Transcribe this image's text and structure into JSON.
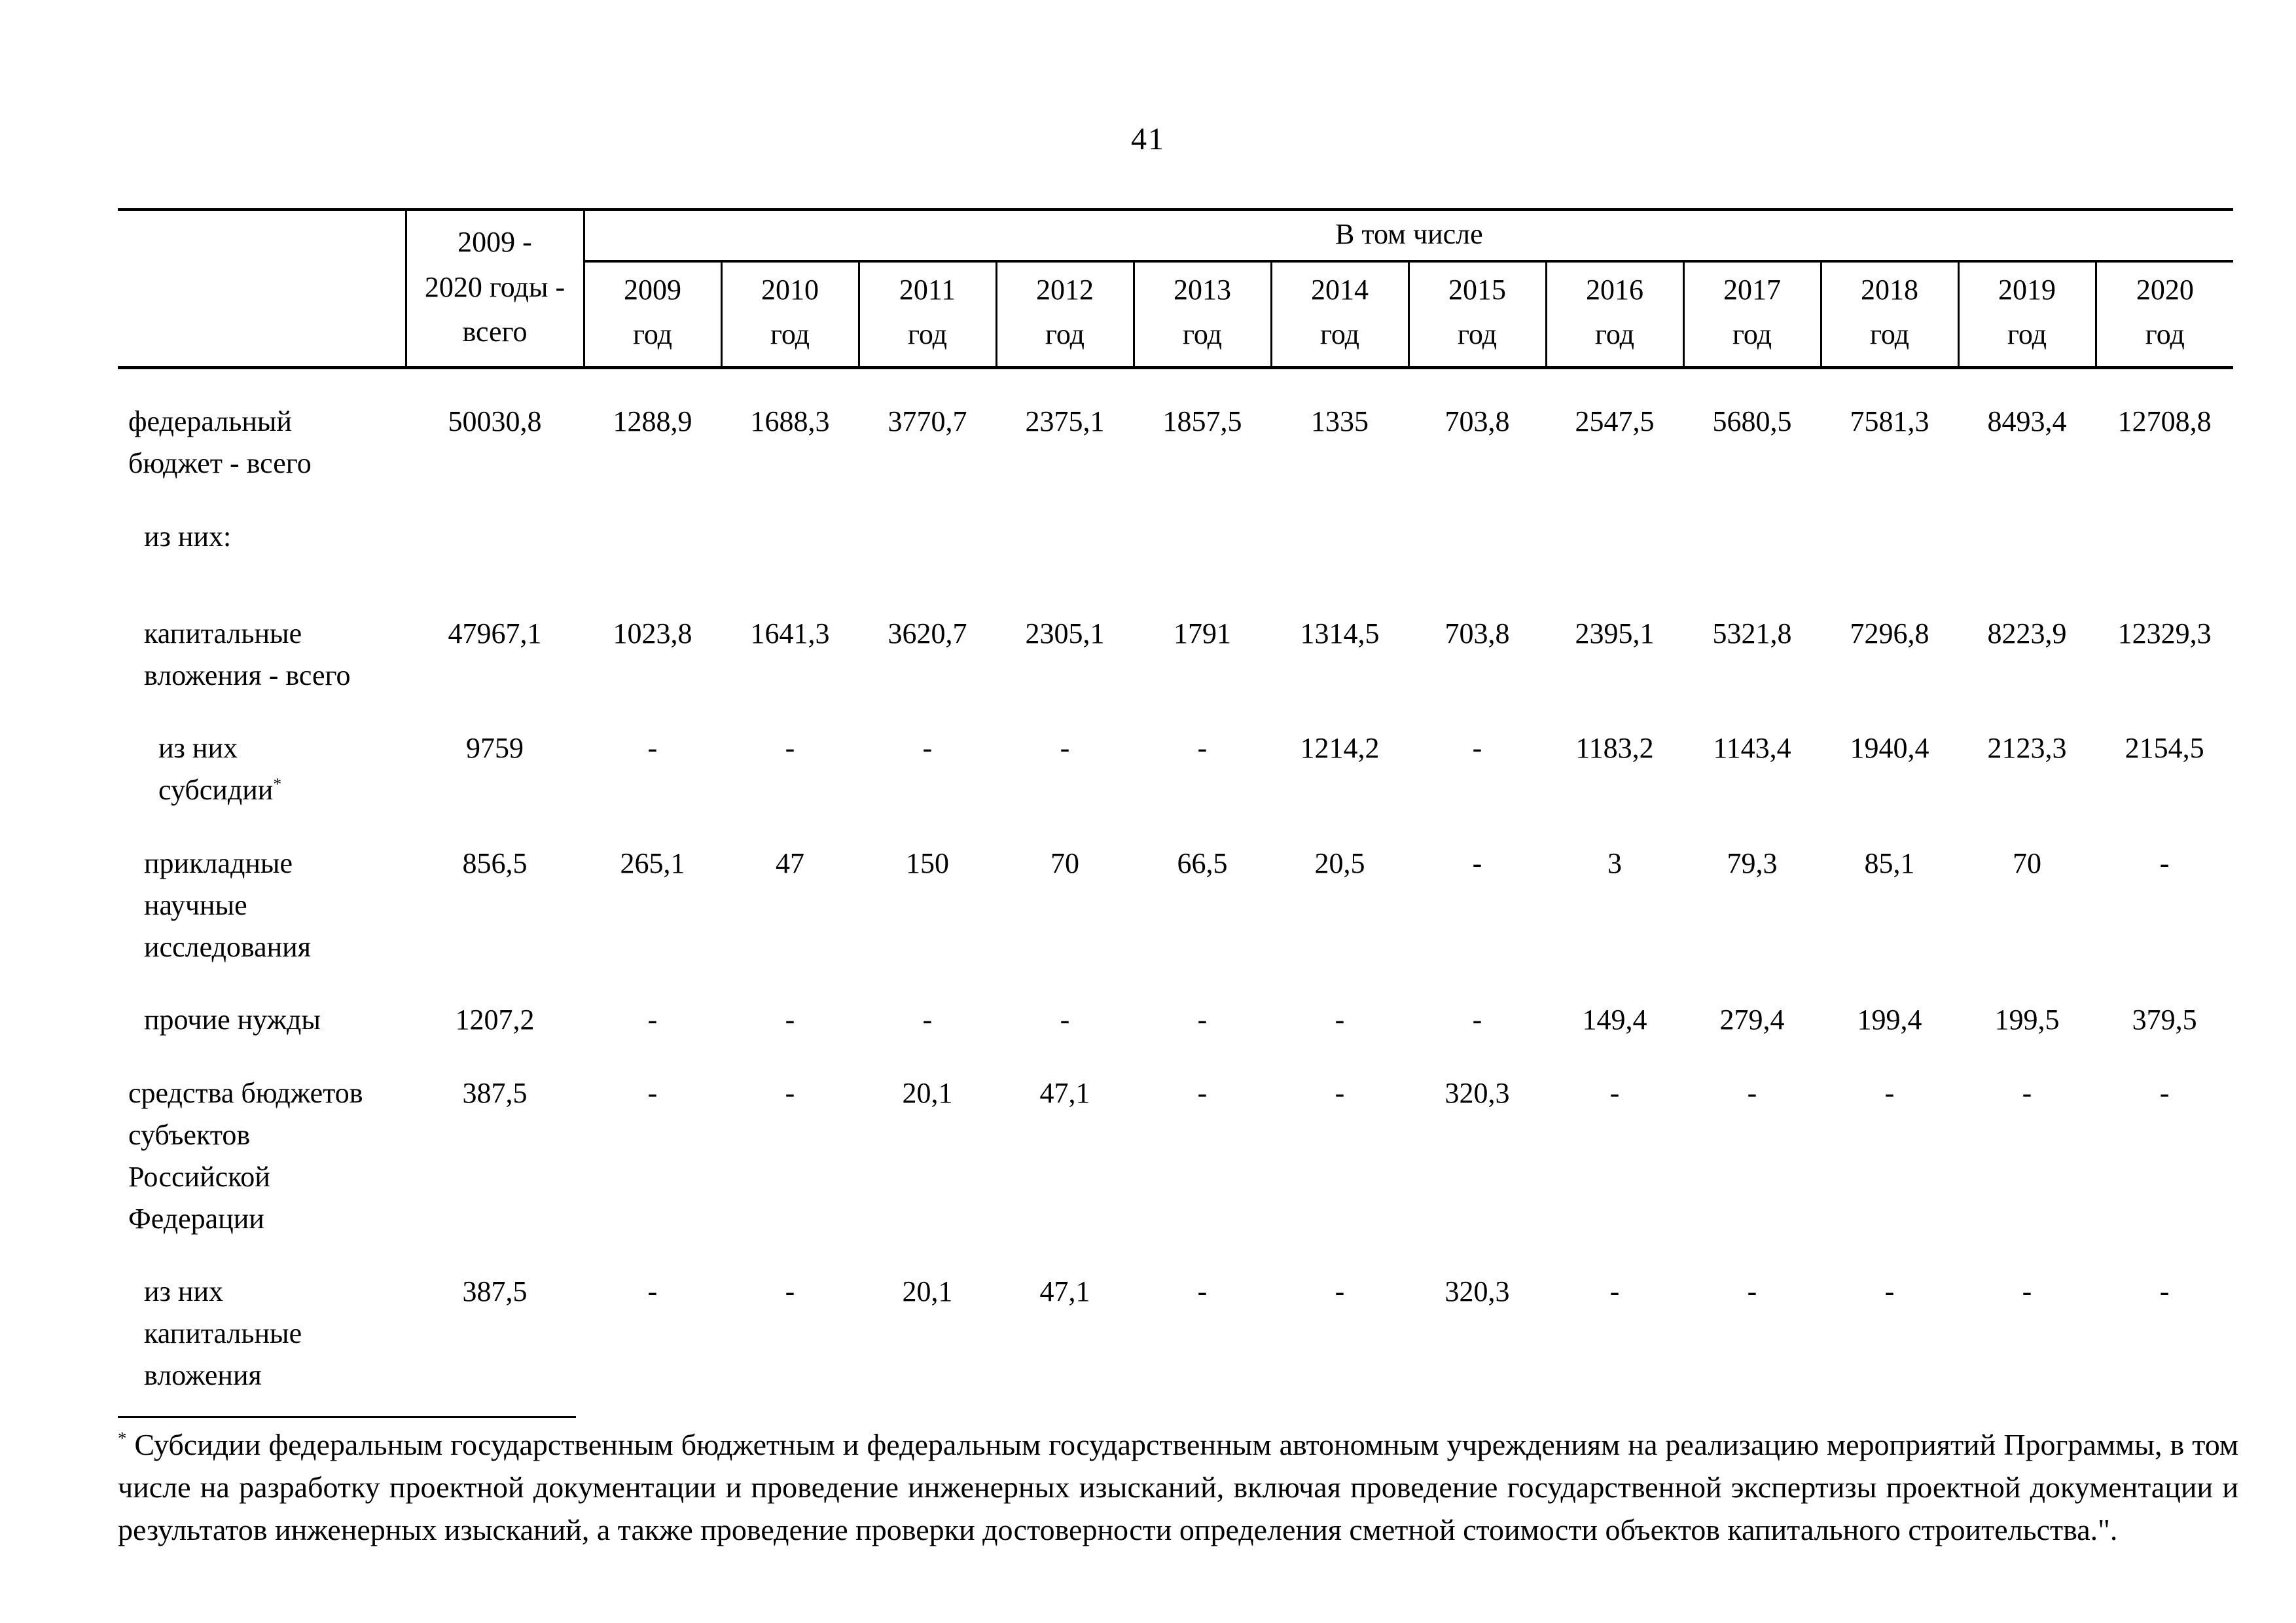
{
  "page": {
    "number": "41"
  },
  "table": {
    "col_total_header": "2009 -\n2020 годы -\nвсего",
    "group_header": "В том числе",
    "year_suffix": "год",
    "years": [
      "2009",
      "2010",
      "2011",
      "2012",
      "2013",
      "2014",
      "2015",
      "2016",
      "2017",
      "2018",
      "2019",
      "2020"
    ],
    "rows": [
      {
        "label": "федеральный\nбюджет - всего",
        "indent": 0,
        "values": [
          "50030,8",
          "1288,9",
          "1688,3",
          "3770,7",
          "2375,1",
          "1857,5",
          "1335",
          "703,8",
          "2547,5",
          "5680,5",
          "7581,3",
          "8493,4",
          "12708,8"
        ]
      },
      {
        "label": "из них:",
        "indent": 1,
        "values": [
          "",
          "",
          "",
          "",
          "",
          "",
          "",
          "",
          "",
          "",
          "",
          "",
          ""
        ]
      },
      {
        "label": "капитальные\nвложения - всего",
        "indent": 1,
        "values": [
          "47967,1",
          "1023,8",
          "1641,3",
          "3620,7",
          "2305,1",
          "1791",
          "1314,5",
          "703,8",
          "2395,1",
          "5321,8",
          "7296,8",
          "8223,9",
          "12329,3"
        ]
      },
      {
        "label": "из них\nсубсидии",
        "footnote_marker": "*",
        "indent": 2,
        "values": [
          "9759",
          "-",
          "-",
          "-",
          "-",
          "-",
          "1214,2",
          "-",
          "1183,2",
          "1143,4",
          "1940,4",
          "2123,3",
          "2154,5"
        ]
      },
      {
        "label": "прикладные\nнаучные\nисследования",
        "indent": 1,
        "values": [
          "856,5",
          "265,1",
          "47",
          "150",
          "70",
          "66,5",
          "20,5",
          "-",
          "3",
          "79,3",
          "85,1",
          "70",
          "-"
        ]
      },
      {
        "label": "прочие нужды",
        "indent": 1,
        "values": [
          "1207,2",
          "-",
          "-",
          "-",
          "-",
          "-",
          "-",
          "-",
          "149,4",
          "279,4",
          "199,4",
          "199,5",
          "379,5"
        ]
      },
      {
        "label": "средства бюджетов\nсубъектов\nРоссийской\nФедерации",
        "indent": 0,
        "values": [
          "387,5",
          "-",
          "-",
          "20,1",
          "47,1",
          "-",
          "-",
          "320,3",
          "-",
          "-",
          "-",
          "-",
          "-"
        ]
      },
      {
        "label": "из них\nкапитальные\nвложения",
        "indent": 1,
        "values": [
          "387,5",
          "-",
          "-",
          "20,1",
          "47,1",
          "-",
          "-",
          "320,3",
          "-",
          "-",
          "-",
          "-",
          "-"
        ]
      }
    ]
  },
  "footnote": {
    "marker": "*",
    "text": "Субсидии федеральным государственным бюджетным и федеральным государственным автономным учреждениям на реализацию мероприятий Программы, в том числе на разработку проектной документации и проведение инженерных изысканий, включая проведение государственной экспертизы проектной документации и результатов инженерных изысканий, а также проведение проверки достоверности определения сметной стоимости объектов капитального строительства.\"."
  }
}
